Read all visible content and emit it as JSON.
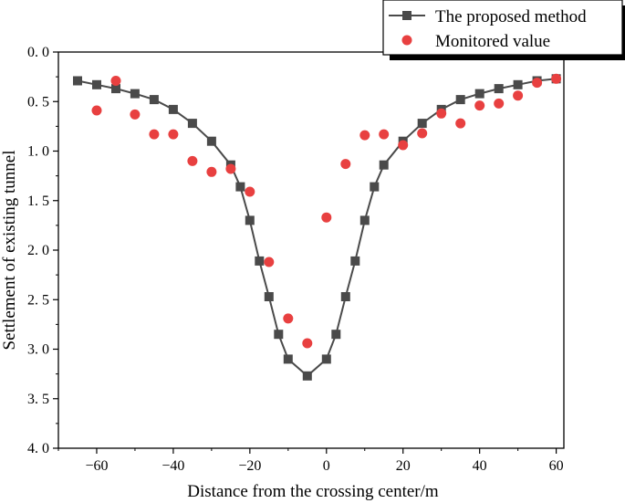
{
  "chart_data": {
    "type": "line",
    "title": "",
    "xlabel": "Distance from the crossing center/m",
    "ylabel": "Settlement of existing tunnel",
    "xlim": [
      -70,
      62
    ],
    "ylim": [
      0.0,
      4.0
    ],
    "y_inverted": true,
    "x_ticks": [
      -60,
      -40,
      -20,
      0,
      20,
      40,
      60
    ],
    "x_tick_labels": [
      "−60",
      "−40",
      "−20",
      "0",
      "20",
      "40",
      "60"
    ],
    "y_ticks": [
      0.0,
      0.5,
      1.0,
      1.5,
      2.0,
      2.5,
      3.0,
      3.5,
      4.0
    ],
    "y_tick_labels": [
      "0. 0",
      "0. 5",
      "1. 0",
      "1. 5",
      "2. 0",
      "2. 5",
      "3. 0",
      "3. 5",
      "4. 0"
    ],
    "legend_position": "top-right",
    "grid": false,
    "series": [
      {
        "name": "The proposed method",
        "style": "line-square",
        "color": "#4a4a4a",
        "x": [
          -65,
          -60,
          -55,
          -50,
          -45,
          -40,
          -35,
          -30,
          -25,
          -22.5,
          -20,
          -17.5,
          -15,
          -12.5,
          -10,
          -5,
          0,
          2.5,
          5,
          7.5,
          10,
          12.5,
          15,
          20,
          25,
          30,
          35,
          40,
          45,
          50,
          55,
          60
        ],
        "y": [
          0.29,
          0.33,
          0.37,
          0.42,
          0.48,
          0.58,
          0.72,
          0.9,
          1.14,
          1.36,
          1.7,
          2.11,
          2.47,
          2.85,
          3.1,
          3.27,
          3.1,
          2.85,
          2.47,
          2.11,
          1.7,
          1.36,
          1.14,
          0.9,
          0.72,
          0.58,
          0.48,
          0.42,
          0.37,
          0.33,
          0.29,
          0.27
        ]
      },
      {
        "name": "Monitored value",
        "style": "scatter-circle",
        "color": "#e84040",
        "x": [
          -60,
          -55,
          -50,
          -45,
          -40,
          -35,
          -30,
          -25,
          -20,
          -15,
          -10,
          -5,
          0,
          5,
          10,
          15,
          20,
          25,
          30,
          35,
          40,
          45,
          50,
          55,
          60
        ],
        "y": [
          0.59,
          0.29,
          0.63,
          0.83,
          0.83,
          1.1,
          1.21,
          1.18,
          1.41,
          2.12,
          2.69,
          2.94,
          1.67,
          1.13,
          0.84,
          0.83,
          0.94,
          0.82,
          0.62,
          0.72,
          0.54,
          0.52,
          0.44,
          0.31,
          0.27
        ]
      }
    ]
  }
}
